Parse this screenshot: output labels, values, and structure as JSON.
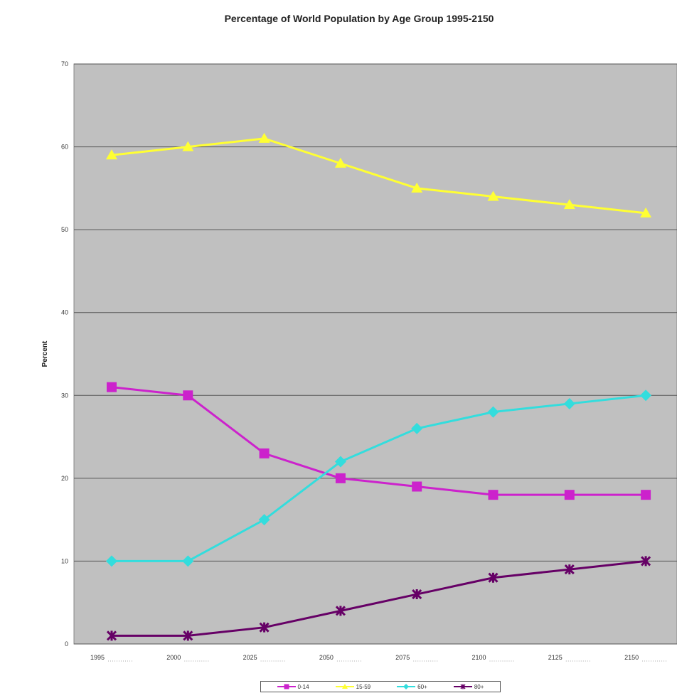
{
  "chart_data": {
    "type": "line",
    "title": "Percentage of World Population by Age Group 1995-2150",
    "ylabel": "Percent",
    "xlabel": "",
    "categories": [
      "1995",
      "2000",
      "2025",
      "2050",
      "2075",
      "2100",
      "2125",
      "2150"
    ],
    "ylim": [
      0,
      70
    ],
    "yticks": [
      "0",
      "10",
      "20",
      "30",
      "40",
      "50",
      "60",
      "70"
    ],
    "grid": true,
    "background": "#c0c0c0",
    "legend_position": "bottom",
    "series": [
      {
        "name": "0-14",
        "color": "#cc22cc",
        "marker": "square",
        "values": [
          31,
          30,
          23,
          20,
          19,
          18,
          18,
          18
        ]
      },
      {
        "name": "15-59",
        "color": "#ffff33",
        "marker": "triangle",
        "values": [
          59,
          60,
          61,
          58,
          55,
          54,
          53,
          52
        ]
      },
      {
        "name": "60+",
        "color": "#33dddd",
        "marker": "diamond",
        "values": [
          10,
          10,
          15,
          22,
          26,
          28,
          29,
          30
        ]
      },
      {
        "name": "80+",
        "color": "#660066",
        "marker": "star",
        "values": [
          1,
          1,
          2,
          4,
          6,
          8,
          9,
          10
        ]
      }
    ]
  }
}
